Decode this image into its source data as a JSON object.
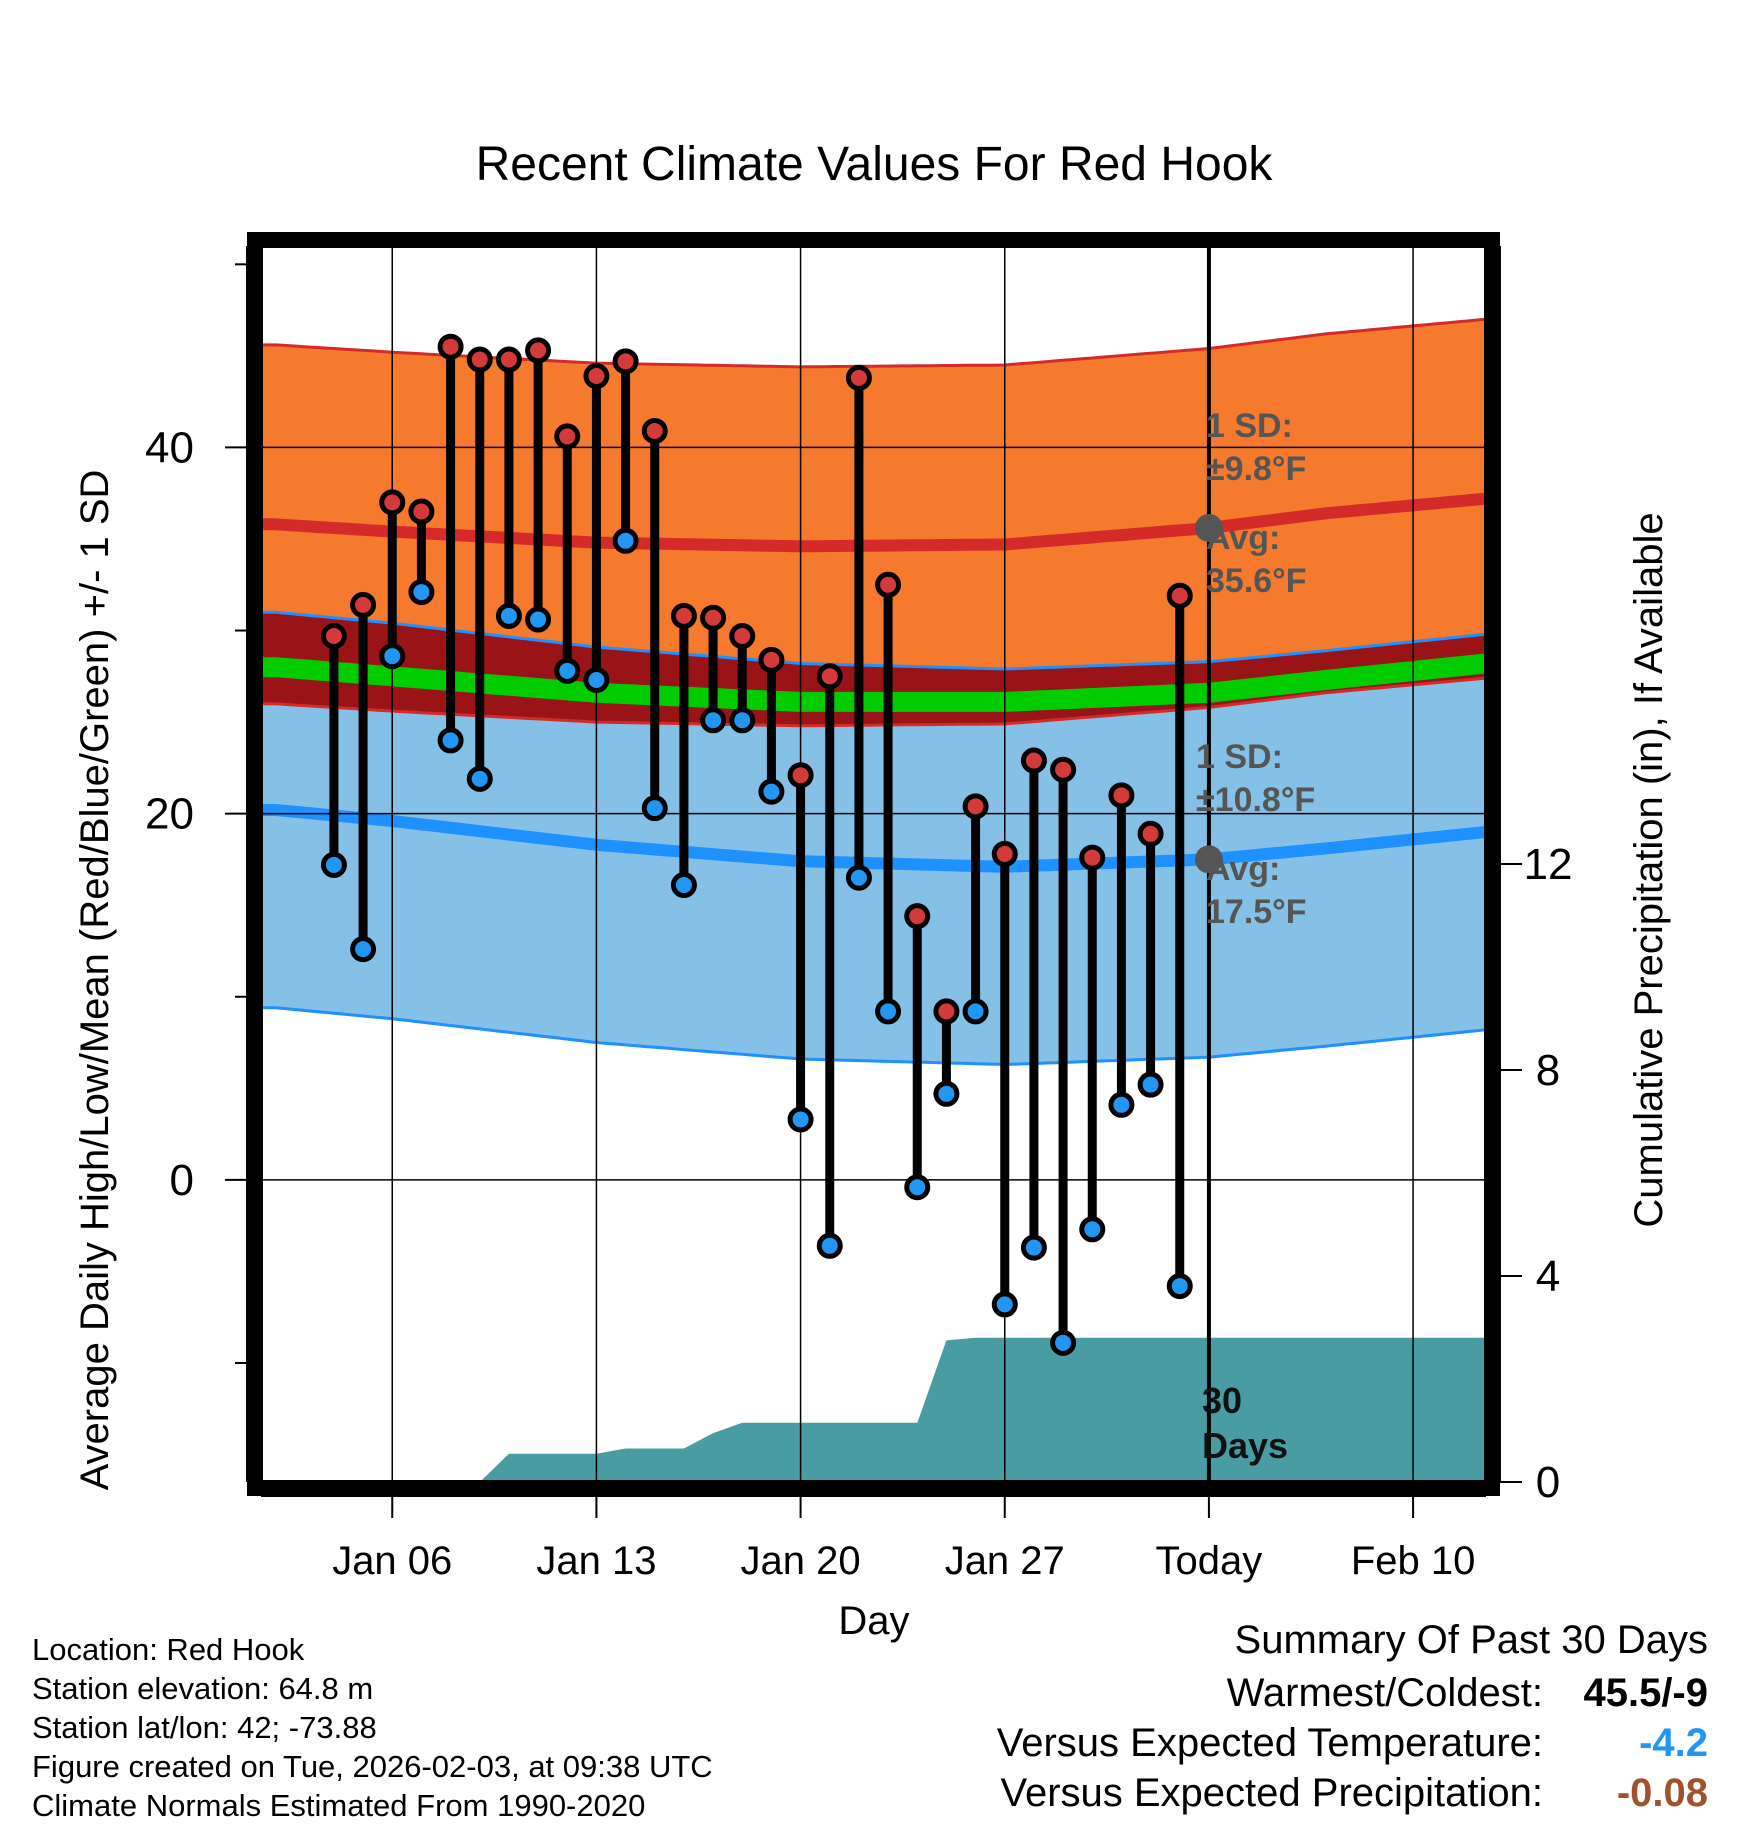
{
  "chart_data": {
    "type": "range-bar",
    "title": "Recent Climate Values For Red Hook",
    "xlabel": "Day",
    "ylabel": "Average Daily High/Low/Mean (Red/Blue/Green) +/- 1 SD",
    "y2label": "Cumulative Precipitation (in), If Available",
    "ylim": [
      -16.5,
      51
    ],
    "y2lim": [
      0,
      24
    ],
    "xlim": [
      1.5,
      43.5
    ],
    "grid": true,
    "x_ticks": [
      {
        "day": 6,
        "label": "Jan 06"
      },
      {
        "day": 13,
        "label": "Jan 13"
      },
      {
        "day": 20,
        "label": "Jan 20"
      },
      {
        "day": 27,
        "label": "Jan 27"
      },
      {
        "day": 34,
        "label": "Today"
      },
      {
        "day": 41,
        "label": "Feb 10"
      }
    ],
    "y_ticks": [
      0,
      20,
      40
    ],
    "y2_ticks": [
      0,
      4,
      8,
      12
    ],
    "today_day": 34,
    "days": [
      4,
      5,
      6,
      7,
      8,
      9,
      10,
      11,
      12,
      13,
      14,
      15,
      16,
      17,
      18,
      19,
      20,
      21,
      22,
      23,
      24,
      25,
      26,
      27,
      28,
      29,
      30,
      31,
      32,
      33
    ],
    "highs": [
      29.7,
      31.4,
      37.0,
      36.5,
      45.5,
      44.8,
      44.8,
      45.3,
      40.6,
      43.9,
      44.7,
      40.9,
      30.8,
      30.7,
      29.7,
      28.4,
      22.1,
      27.5,
      43.8,
      32.5,
      14.4,
      9.2,
      20.4,
      17.8,
      22.9,
      22.4,
      17.6,
      21.0,
      18.9,
      31.9
    ],
    "lows": [
      17.2,
      12.6,
      28.6,
      32.1,
      24.0,
      21.9,
      30.8,
      30.6,
      27.8,
      27.3,
      34.9,
      20.3,
      16.1,
      25.1,
      25.1,
      21.2,
      3.3,
      -3.6,
      16.5,
      9.2,
      -0.4,
      4.7,
      9.2,
      -6.8,
      -3.7,
      -8.9,
      -2.7,
      4.1,
      5.2,
      -5.8
    ],
    "normal_high": {
      "days": [
        2,
        6,
        13,
        20,
        27,
        34,
        38,
        43.5
      ],
      "values": [
        35.8,
        35.4,
        34.8,
        34.6,
        34.7,
        35.6,
        36.4,
        37.2
      ]
    },
    "normal_low": {
      "days": [
        2,
        6,
        13,
        20,
        27,
        34,
        38,
        43.5
      ],
      "values": [
        20.2,
        19.6,
        18.3,
        17.4,
        17.1,
        17.5,
        18.1,
        19.0
      ]
    },
    "normal_mean": {
      "days": [
        2,
        6,
        13,
        20,
        27,
        34,
        38,
        43.5
      ],
      "values": [
        28.0,
        27.5,
        26.6,
        26.1,
        26.1,
        26.6,
        27.3,
        28.2
      ]
    },
    "high_sd": 9.8,
    "low_sd": 10.8,
    "precip_cumulative": {
      "days": [
        2,
        9,
        10,
        13,
        14,
        16,
        17,
        18,
        20,
        23,
        24,
        25,
        26,
        27,
        34,
        43.5
      ],
      "values": [
        0,
        0,
        0.55,
        0.55,
        0.65,
        0.65,
        0.95,
        1.15,
        1.15,
        1.15,
        1.15,
        2.75,
        2.8,
        2.8,
        2.8,
        2.8
      ]
    },
    "annotations": {
      "high_sd_label": "1 SD:",
      "high_sd_value": "±9.8°F",
      "high_avg_label": "Avg:",
      "high_avg_value": "35.6°F",
      "low_sd_label": "1 SD:",
      "low_sd_value": "±10.8°F",
      "low_avg_label": "Avg:",
      "low_avg_value": "17.5°F",
      "period_number": "30",
      "period_unit": "Days"
    },
    "colors": {
      "high_band": "#f57a2e",
      "high_line": "#d42a2a",
      "low_band": "#85c0e6",
      "low_line": "#1e90ff",
      "mean_band": "#9a1316",
      "mean_line": "#00cc00",
      "precip": "#4a9ca3",
      "high_marker": "#d43a3a",
      "low_marker": "#2196f3",
      "avg_marker": "#555555"
    }
  },
  "info": {
    "location": "Location: Red Hook",
    "elevation": "Station elevation: 64.8 m",
    "latlon": "Station lat/lon: 42; -73.88",
    "created": "Figure created on Tue, 2026-02-03, at 09:38 UTC",
    "normals": "Climate Normals Estimated From 1990-2020"
  },
  "summary": {
    "title": "Summary Of Past 30 Days",
    "warmest_label": "Warmest/Coldest:",
    "warmest_value": "45.5/-9",
    "temp_label": "Versus Expected Temperature:",
    "temp_value": "-4.2",
    "temp_color": "#2196f3",
    "precip_label": "Versus Expected Precipitation:",
    "precip_value": "-0.08",
    "precip_color": "#a0522d"
  }
}
